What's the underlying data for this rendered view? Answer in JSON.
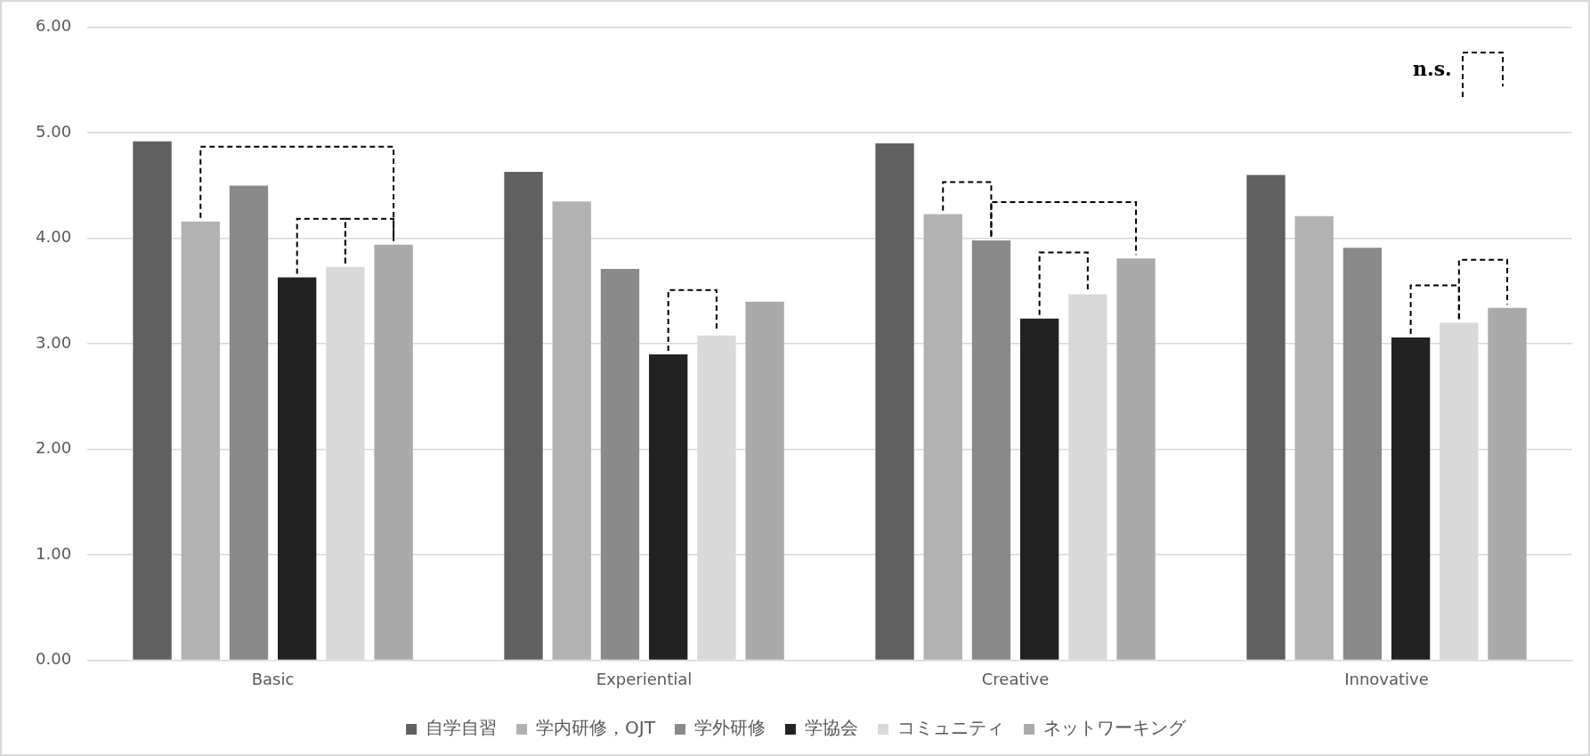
{
  "chart_data": {
    "type": "bar",
    "categories": [
      "Basic",
      "Experiential",
      "Creative",
      "Innovative"
    ],
    "series": [
      {
        "name": "自学自習",
        "color": "#606060",
        "values": [
          4.92,
          4.63,
          4.9,
          4.6
        ]
      },
      {
        "name": "学内研修，OJT",
        "color": "#b2b2b2",
        "values": [
          4.16,
          4.35,
          4.23,
          4.21
        ]
      },
      {
        "name": "学外研修",
        "color": "#8a8a8a",
        "values": [
          4.5,
          3.71,
          3.98,
          3.91
        ]
      },
      {
        "name": "学協会",
        "color": "#222222",
        "values": [
          3.63,
          2.9,
          3.24,
          3.06
        ]
      },
      {
        "name": "コミュニティ",
        "color": "#d9d9d9",
        "values": [
          3.73,
          3.08,
          3.47,
          3.2
        ]
      },
      {
        "name": "ネットワーキング",
        "color": "#aaaaaa",
        "values": [
          3.94,
          3.4,
          3.81,
          3.34
        ]
      }
    ],
    "ylim": [
      0,
      6
    ],
    "yticks": [
      {
        "value": 0,
        "label": "0.00"
      },
      {
        "value": 1,
        "label": "1.00"
      },
      {
        "value": 2,
        "label": "2.00"
      },
      {
        "value": 3,
        "label": "3.00"
      },
      {
        "value": 4,
        "label": "4.00"
      },
      {
        "value": 5,
        "label": "5.00"
      },
      {
        "value": 6,
        "label": "6.00"
      }
    ],
    "grid": "y",
    "legend": "bottom",
    "annotations": [
      "n.s."
    ]
  }
}
